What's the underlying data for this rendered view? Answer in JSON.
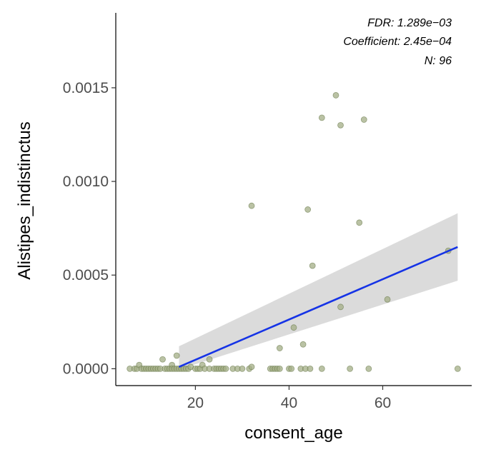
{
  "chart_data": {
    "type": "scatter",
    "xlabel": "consent_age",
    "ylabel": "Alistipes_indistinctus",
    "xlim": [
      3,
      79
    ],
    "ylim": [
      -9e-05,
      0.0019
    ],
    "x_ticks": [
      20,
      40,
      60
    ],
    "x_tick_labels": [
      "20",
      "40",
      "60"
    ],
    "y_ticks": [
      0.0,
      0.0005,
      0.001,
      0.0015
    ],
    "y_tick_labels": [
      "0.0000",
      "0.0005",
      "0.0010",
      "0.0015"
    ],
    "annotations": [
      "FDR: 1.289e−03",
      "Coefficient: 2.45e−04",
      "N: 96"
    ],
    "grid": false,
    "legend": "none",
    "colors": {
      "point_fill": "#a3ad86",
      "point_stroke": "#5a6b3a",
      "fit_line": "#1533e6",
      "ci_band": "#d9d9d9",
      "axis": "#000000"
    },
    "fit": {
      "x_start": 16.5,
      "x_end": 76,
      "y_start": 1e-05,
      "y_end": 0.00065,
      "ci_start": [
        -4e-06,
        0.00012
      ],
      "ci_end": [
        0.00047,
        0.00083
      ]
    },
    "points": [
      {
        "x": 6,
        "y": 0
      },
      {
        "x": 7,
        "y": 0
      },
      {
        "x": 7.5,
        "y": 0
      },
      {
        "x": 8,
        "y": 2e-05
      },
      {
        "x": 8.5,
        "y": 0
      },
      {
        "x": 9,
        "y": 0
      },
      {
        "x": 9.5,
        "y": 0
      },
      {
        "x": 10,
        "y": 0
      },
      {
        "x": 10.5,
        "y": 0
      },
      {
        "x": 11,
        "y": 0
      },
      {
        "x": 11.5,
        "y": 0
      },
      {
        "x": 12,
        "y": 0
      },
      {
        "x": 12.5,
        "y": 0
      },
      {
        "x": 13,
        "y": 5e-05
      },
      {
        "x": 13.5,
        "y": 0
      },
      {
        "x": 14,
        "y": 0
      },
      {
        "x": 14.5,
        "y": 0
      },
      {
        "x": 15,
        "y": 2e-05
      },
      {
        "x": 15,
        "y": 0
      },
      {
        "x": 15.5,
        "y": 0
      },
      {
        "x": 16,
        "y": 7e-05
      },
      {
        "x": 16,
        "y": 0
      },
      {
        "x": 16.5,
        "y": 0
      },
      {
        "x": 17,
        "y": 0
      },
      {
        "x": 17.5,
        "y": 0
      },
      {
        "x": 18,
        "y": 0
      },
      {
        "x": 18.5,
        "y": 0
      },
      {
        "x": 19,
        "y": 1e-05
      },
      {
        "x": 20,
        "y": 0
      },
      {
        "x": 20.5,
        "y": 0
      },
      {
        "x": 21,
        "y": 0
      },
      {
        "x": 21.5,
        "y": 2e-05
      },
      {
        "x": 22,
        "y": 0
      },
      {
        "x": 23,
        "y": 5e-05
      },
      {
        "x": 23,
        "y": 0
      },
      {
        "x": 24,
        "y": 0
      },
      {
        "x": 24.5,
        "y": 0
      },
      {
        "x": 25,
        "y": 0
      },
      {
        "x": 25.5,
        "y": 0
      },
      {
        "x": 26,
        "y": 0
      },
      {
        "x": 26.5,
        "y": 0
      },
      {
        "x": 28,
        "y": 0
      },
      {
        "x": 29,
        "y": 0
      },
      {
        "x": 30,
        "y": 0
      },
      {
        "x": 31.5,
        "y": 0
      },
      {
        "x": 32,
        "y": 1e-05
      },
      {
        "x": 32,
        "y": 0.00087
      },
      {
        "x": 36,
        "y": 0
      },
      {
        "x": 36.5,
        "y": 0
      },
      {
        "x": 37,
        "y": 0
      },
      {
        "x": 37.5,
        "y": 0
      },
      {
        "x": 38,
        "y": 0.00011
      },
      {
        "x": 38,
        "y": 0
      },
      {
        "x": 40,
        "y": 0
      },
      {
        "x": 40.5,
        "y": 0
      },
      {
        "x": 41,
        "y": 0.00022
      },
      {
        "x": 42.5,
        "y": 0
      },
      {
        "x": 43,
        "y": 0.00013
      },
      {
        "x": 43.5,
        "y": 0
      },
      {
        "x": 44,
        "y": 0.00085
      },
      {
        "x": 44.5,
        "y": 0
      },
      {
        "x": 45,
        "y": 0.00055
      },
      {
        "x": 47,
        "y": 0.00134
      },
      {
        "x": 47,
        "y": 0
      },
      {
        "x": 50,
        "y": 0.00146
      },
      {
        "x": 51,
        "y": 0.0013
      },
      {
        "x": 51,
        "y": 0.00033
      },
      {
        "x": 53,
        "y": 0
      },
      {
        "x": 55,
        "y": 0.00078
      },
      {
        "x": 56,
        "y": 0.00133
      },
      {
        "x": 57,
        "y": 0
      },
      {
        "x": 61,
        "y": 0.00037
      },
      {
        "x": 74,
        "y": 0.00063
      },
      {
        "x": 76,
        "y": 0
      }
    ]
  }
}
